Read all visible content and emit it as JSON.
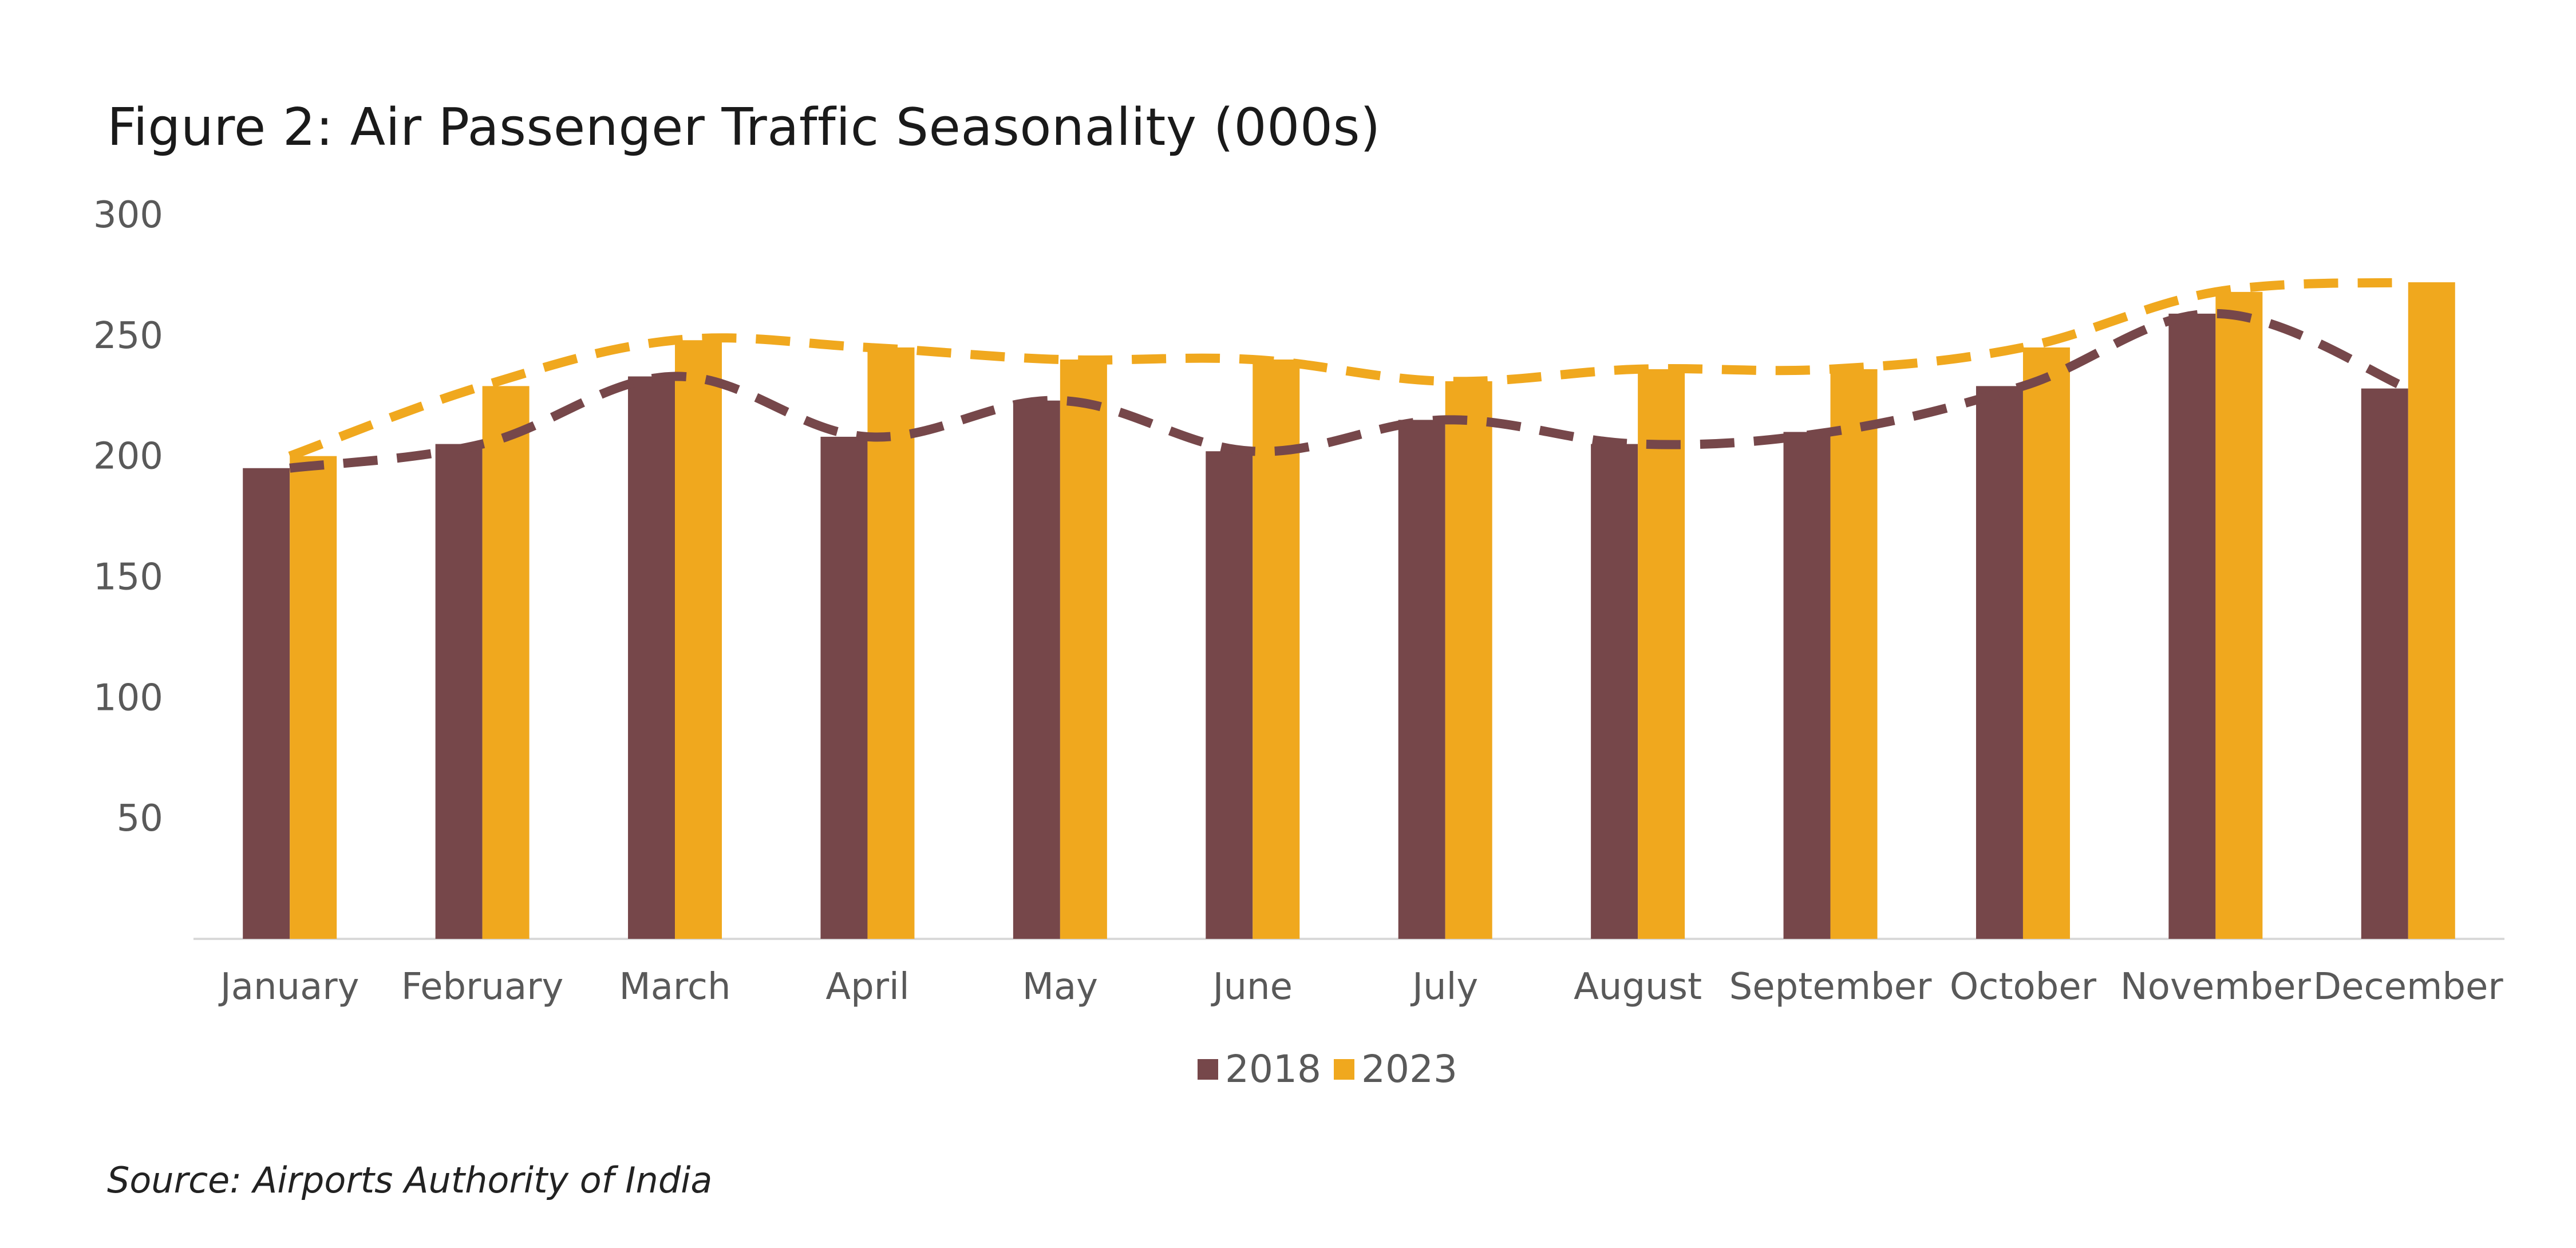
{
  "figure_title": "Figure 2: Air Passenger Traffic Seasonality (000s)",
  "source_note": "Source: Airports Authority of India",
  "colors": {
    "series_2018": "#76474a",
    "series_2023": "#f0a81e",
    "axis": "#d9d9d9",
    "tick_text": "#595959"
  },
  "chart_data": {
    "type": "bar",
    "title": "Figure 2: Air Passenger Traffic Seasonality (000s)",
    "xlabel": "",
    "ylabel": "",
    "ylim": [
      0,
      300
    ],
    "y_ticks": [
      "50",
      "100",
      "150",
      "200",
      "250",
      "300"
    ],
    "grid": false,
    "legend_position": "bottom",
    "categories": [
      "January",
      "February",
      "March",
      "April",
      "May",
      "June",
      "July",
      "August",
      "September",
      "October",
      "November",
      "December"
    ],
    "series": [
      {
        "name": "2018",
        "values": [
          195,
          205,
          233,
          208,
          223,
          202,
          215,
          205,
          210,
          229,
          259,
          228
        ]
      },
      {
        "name": "2023",
        "values": [
          200,
          229,
          248,
          245,
          240,
          240,
          231,
          236,
          236,
          245,
          268,
          272
        ]
      }
    ],
    "trend_lines": "dashed line overlay for each series following the bar values"
  }
}
